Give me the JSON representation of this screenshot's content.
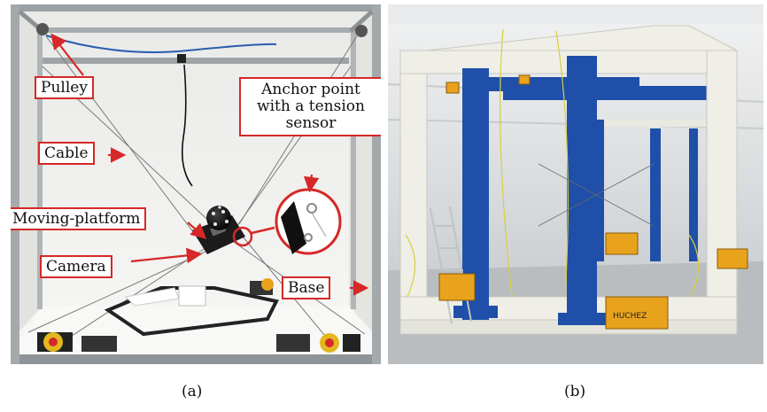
{
  "panel_a": {
    "labels": {
      "pulley": "Pulley",
      "cable": "Cable",
      "anchor": "Anchor point with a tension sensor",
      "platform": "Moving-platform",
      "camera": "Camera",
      "base": "Base"
    },
    "caption": "(a)"
  },
  "panel_b": {
    "caption": "(b)",
    "brand": "HUCHEZ"
  },
  "colors": {
    "annotation": "#d62828",
    "frame_blue": "#1f4fa8",
    "frame_white": "#efefe8",
    "winch_orange": "#e8a21c"
  }
}
